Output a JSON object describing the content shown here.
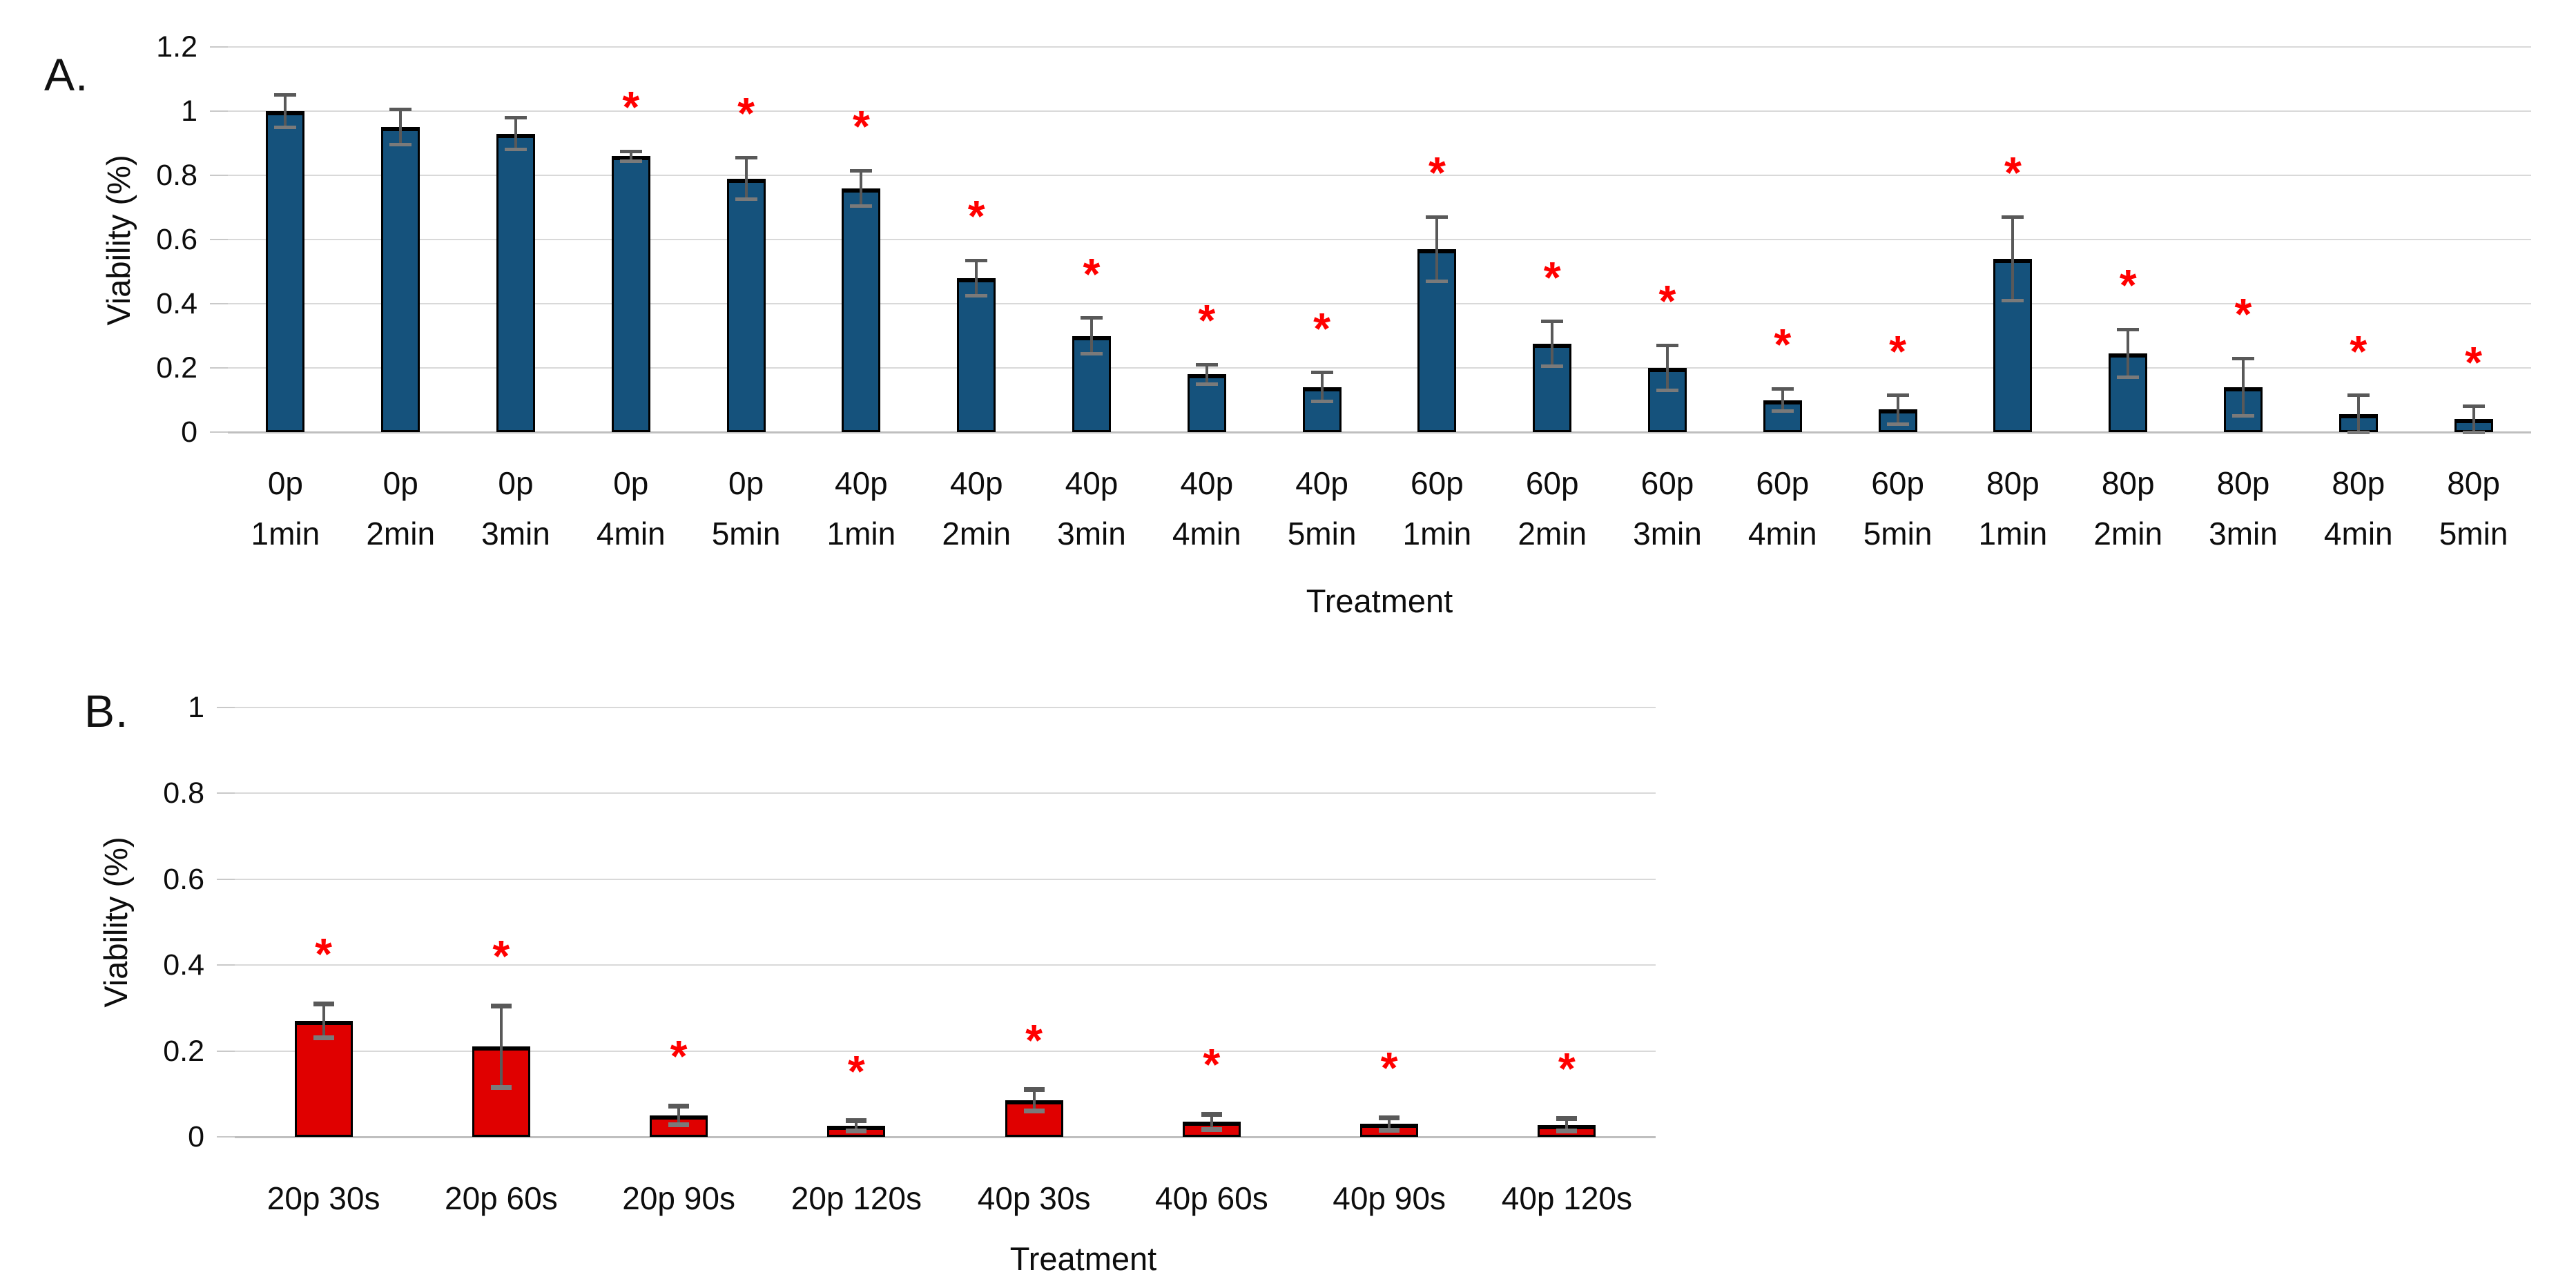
{
  "figure": {
    "background": "#ffffff",
    "gridline_color": "#d9d9d9",
    "axis_line_color": "#bfbfbf",
    "error_bar_color": "#595959",
    "significance_color": "#ff0000"
  },
  "chart_data": [
    {
      "type": "bar",
      "panel_label": "A.",
      "title": "",
      "xlabel": "Treatment",
      "ylabel": "Viability (%)",
      "categories": [
        "0p 1min",
        "0p 2min",
        "0p 3min",
        "0p 4min",
        "0p 5min",
        "40p 1min",
        "40p 2min",
        "40p 3min",
        "40p 4min",
        "40p 5min",
        "60p 1min",
        "60p 2min",
        "60p 3min",
        "60p 4min",
        "60p 5min",
        "80p 1min",
        "80p 2min",
        "80p 3min",
        "80p 4min",
        "80p 5min"
      ],
      "values": [
        1.0,
        0.95,
        0.93,
        0.86,
        0.79,
        0.76,
        0.48,
        0.3,
        0.18,
        0.14,
        0.57,
        0.275,
        0.2,
        0.1,
        0.07,
        0.54,
        0.245,
        0.14,
        0.055,
        0.04
      ],
      "errors": [
        0.05,
        0.055,
        0.05,
        0.015,
        0.065,
        0.055,
        0.055,
        0.055,
        0.03,
        0.045,
        0.1,
        0.07,
        0.07,
        0.035,
        0.045,
        0.13,
        0.075,
        0.09,
        0.06,
        0.04
      ],
      "significant": [
        false,
        false,
        false,
        true,
        true,
        true,
        true,
        true,
        true,
        true,
        true,
        true,
        true,
        true,
        true,
        true,
        true,
        true,
        true,
        true
      ],
      "sig_marker": "*",
      "ylim": [
        0,
        1.2
      ],
      "yticks": [
        0,
        0.2,
        0.4,
        0.6,
        0.8,
        1,
        1.2
      ],
      "ytick_labels": [
        "0",
        "0.2",
        "0.4",
        "0.6",
        "0.8",
        "1",
        "1.2"
      ],
      "bar_color": "#15527C",
      "bar_border_color": "#000000",
      "grid": true,
      "legend": null,
      "two_line_categories": true
    },
    {
      "type": "bar",
      "panel_label": "B.",
      "title": "",
      "xlabel": "Treatment",
      "ylabel": "Viability (%)",
      "categories": [
        "20p 30s",
        "20p 60s",
        "20p 90s",
        "20p 120s",
        "40p 30s",
        "40p 60s",
        "40p 90s",
        "40p 120s"
      ],
      "values": [
        0.27,
        0.21,
        0.05,
        0.025,
        0.085,
        0.035,
        0.03,
        0.028
      ],
      "errors": [
        0.04,
        0.095,
        0.022,
        0.012,
        0.025,
        0.018,
        0.015,
        0.015
      ],
      "significant": [
        true,
        true,
        true,
        true,
        true,
        true,
        true,
        true
      ],
      "sig_marker": "*",
      "ylim": [
        0,
        1
      ],
      "yticks": [
        0,
        0.2,
        0.4,
        0.6,
        0.8,
        1
      ],
      "ytick_labels": [
        "0",
        "0.2",
        "0.4",
        "0.6",
        "0.8",
        "1"
      ],
      "bar_color": "#E00000",
      "bar_border_color": "#000000",
      "grid": true,
      "legend": null,
      "two_line_categories": false
    }
  ]
}
